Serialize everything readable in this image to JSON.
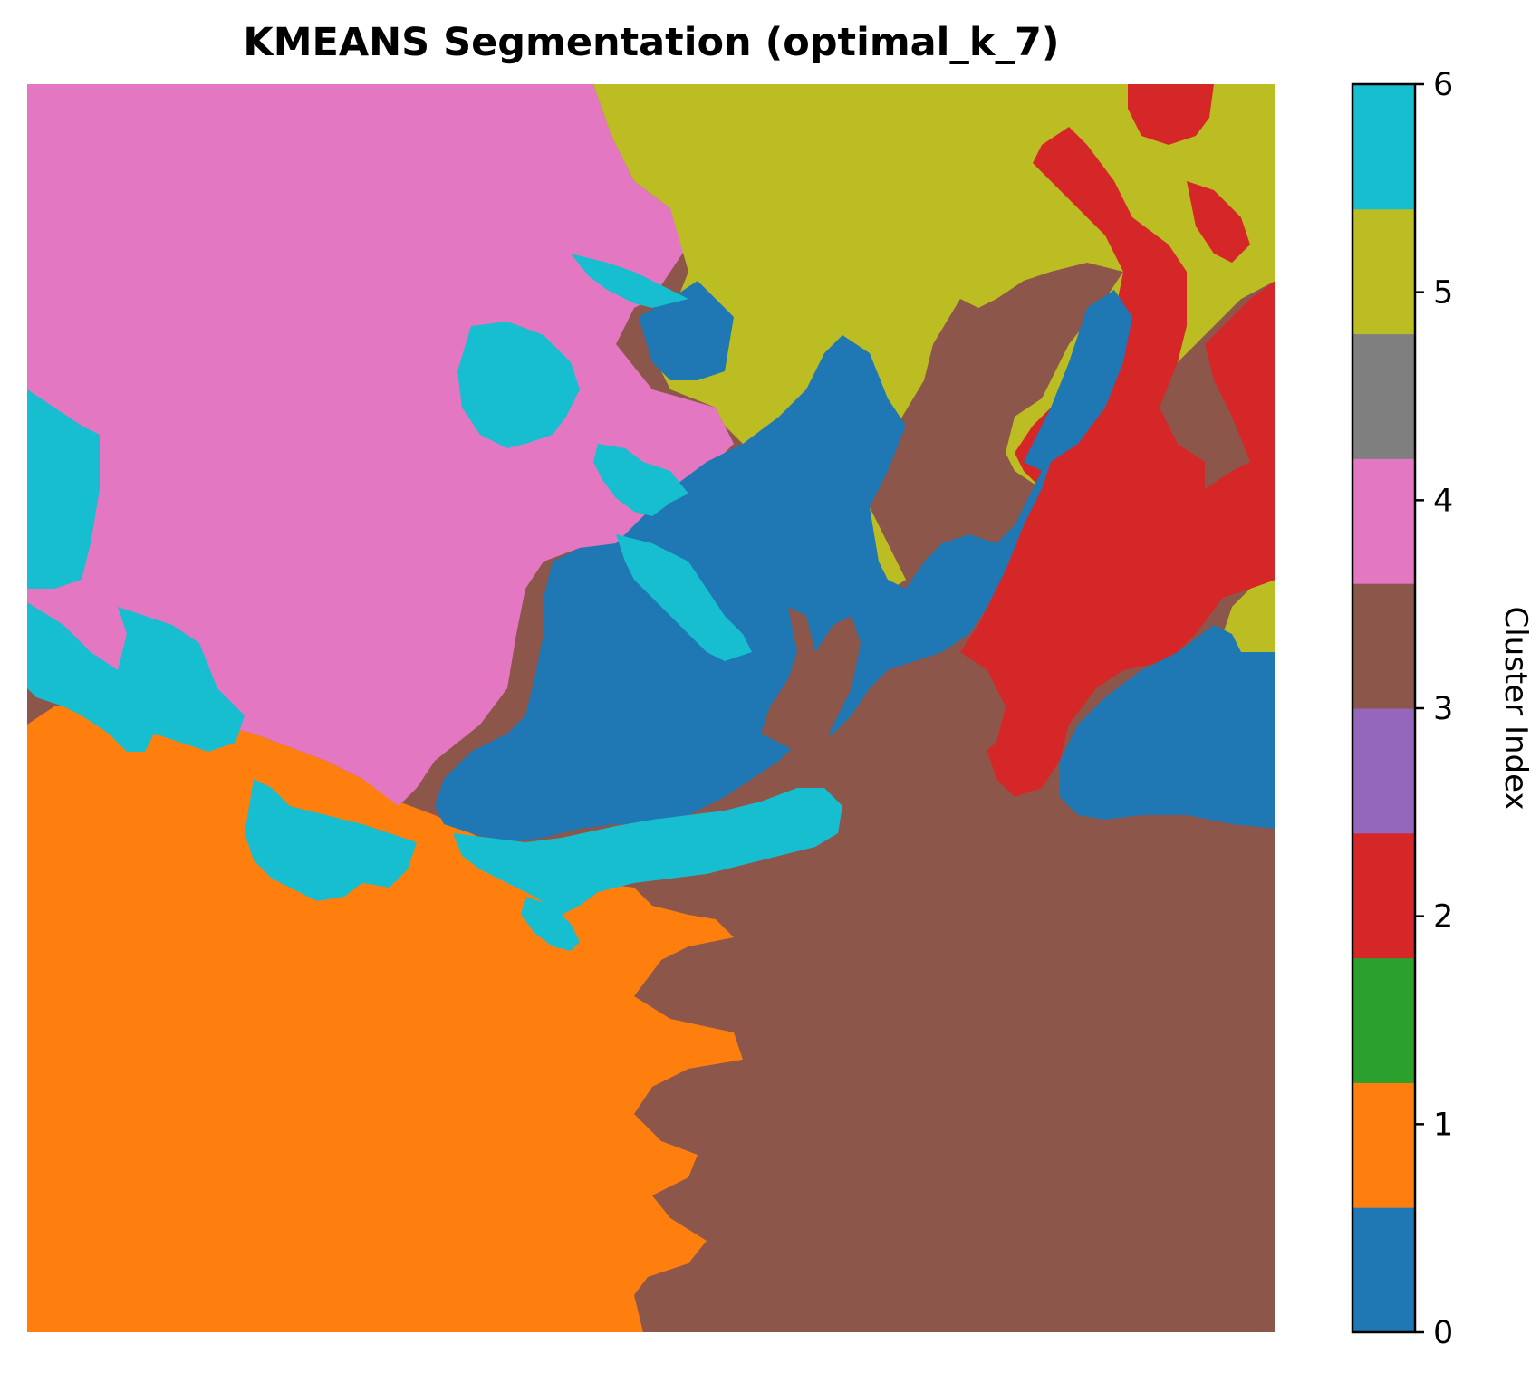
{
  "chart_data": {
    "type": "heatmap",
    "title": "KMEANS Segmentation (optimal_k_7)",
    "colorbar": {
      "label": "Cluster Index",
      "ticks": [
        "0",
        "1",
        "2",
        "3",
        "4",
        "5",
        "6"
      ],
      "range": [
        0,
        6
      ],
      "bins": [
        {
          "index": 0,
          "color": "#1f77b4"
        },
        {
          "index": 1,
          "color": "#ff7f0e"
        },
        {
          "index": 2,
          "color": "#2ca02c"
        },
        {
          "index": 3,
          "color": "#d62728"
        },
        {
          "index": 4,
          "color": "#9467bd"
        },
        {
          "index": 5,
          "color": "#8c564b"
        },
        {
          "index": 6,
          "color": "#e377c2"
        },
        {
          "index": 7,
          "color": "#7f7f7f"
        },
        {
          "index": 8,
          "color": "#bcbd22"
        },
        {
          "index": 9,
          "color": "#17becf"
        }
      ]
    },
    "clusters": [
      {
        "index": 0,
        "color": "#1f77b4"
      },
      {
        "index": 1,
        "color": "#ff7f0e"
      },
      {
        "index": 2,
        "color": "#d62728"
      },
      {
        "index": 3,
        "color": "#8c564b"
      },
      {
        "index": 4,
        "color": "#e377c2"
      },
      {
        "index": 5,
        "color": "#bcbd22"
      },
      {
        "index": 6,
        "color": "#17becf"
      }
    ],
    "axes_visible": false
  }
}
